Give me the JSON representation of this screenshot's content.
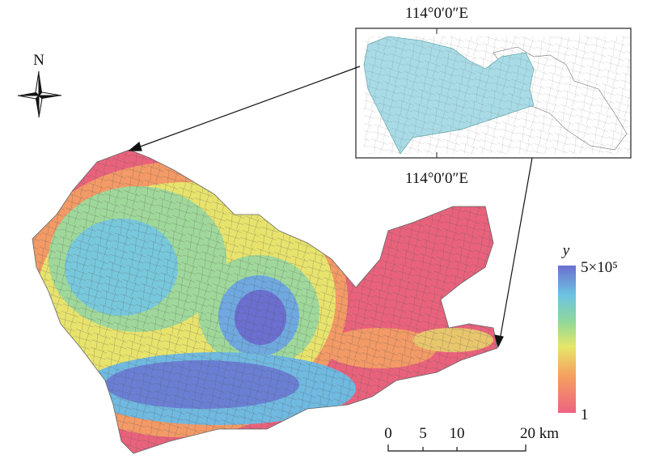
{
  "north_arrow": {
    "label": "N"
  },
  "inset": {
    "top_label": "114°0′0″E",
    "bottom_label": "114°0′0″E"
  },
  "legend": {
    "title": "y",
    "max_label": "5×10⁵",
    "min_label": "1"
  },
  "scale_bar": {
    "labels": [
      "0",
      "5",
      "10",
      "20 km"
    ]
  }
}
